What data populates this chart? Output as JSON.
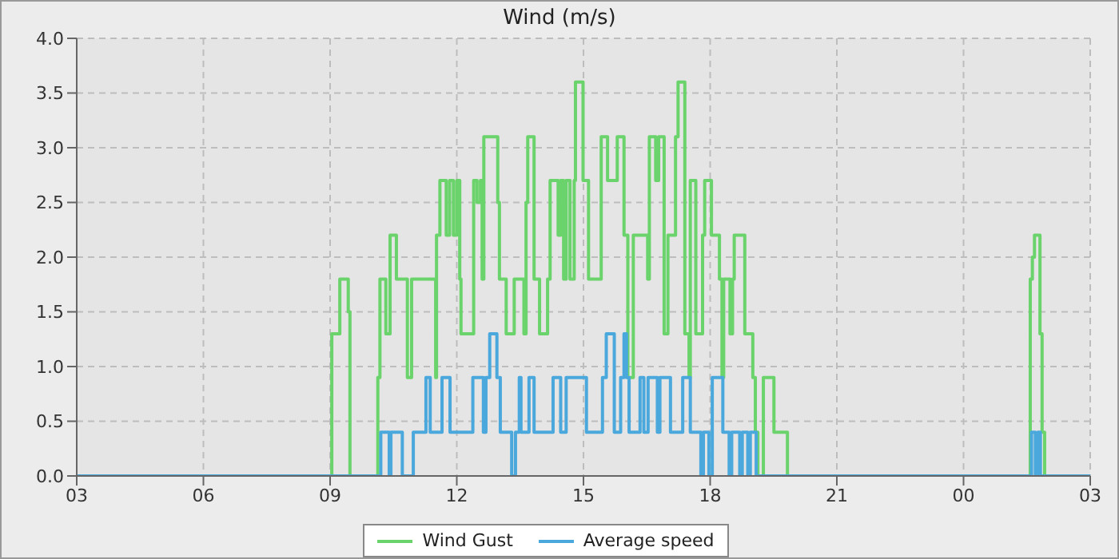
{
  "chart_data": {
    "type": "step",
    "title": "Wind (m/s)",
    "xlim": [
      3,
      27
    ],
    "xticks": [
      {
        "value": 3,
        "label": "03"
      },
      {
        "value": 6,
        "label": "06"
      },
      {
        "value": 9,
        "label": "09"
      },
      12,
      15,
      18,
      21,
      {
        "value": 24,
        "label": "00"
      },
      {
        "value": 27,
        "label": "03"
      }
    ],
    "ylim": [
      0,
      4
    ],
    "yticks": [
      {
        "value": 0,
        "label": "0.0"
      },
      {
        "value": 0.5,
        "label": "0.5"
      },
      {
        "value": 1,
        "label": "1.0"
      },
      {
        "value": 1.5,
        "label": "1.5"
      },
      {
        "value": 2,
        "label": "2.0"
      },
      {
        "value": 2.5,
        "label": "2.5"
      },
      {
        "value": 3,
        "label": "3.0"
      },
      {
        "value": 3.5,
        "label": "3.5"
      },
      {
        "value": 4,
        "label": "4.0"
      }
    ],
    "grid": true,
    "legend": "bottom",
    "line_style": "solid",
    "series": [
      {
        "name": "Wind Gust",
        "color": "#6bd36b",
        "x": [
          3,
          9.04,
          9.23,
          9.43,
          9.47,
          10.13,
          10.18,
          10.32,
          10.42,
          10.57,
          10.83,
          10.93,
          11.5,
          11.52,
          11.6,
          11.75,
          11.83,
          11.92,
          12.0,
          12.07,
          12.1,
          12.4,
          12.48,
          12.56,
          12.6,
          12.64,
          12.97,
          13.01,
          13.17,
          13.36,
          13.59,
          13.64,
          13.68,
          13.83,
          13.96,
          14.15,
          14.21,
          14.4,
          14.46,
          14.53,
          14.59,
          14.68,
          14.78,
          14.81,
          14.99,
          15.12,
          15.42,
          15.57,
          15.8,
          15.96,
          16.05,
          16.18,
          16.52,
          16.56,
          16.71,
          16.78,
          16.91,
          17.0,
          17.18,
          17.24,
          17.4,
          17.5,
          17.53,
          17.66,
          17.82,
          17.87,
          18.03,
          18.22,
          18.28,
          18.32,
          18.47,
          18.53,
          18.57,
          18.82,
          19.01,
          19.07,
          19.13,
          19.26,
          19.51,
          19.83,
          25.58,
          25.63,
          25.68,
          25.81,
          25.86,
          25.92,
          27
        ],
        "values": [
          0,
          1.3,
          1.8,
          1.5,
          0,
          0.9,
          1.8,
          1.3,
          2.2,
          1.8,
          0.9,
          1.8,
          0.9,
          2.2,
          2.7,
          2.2,
          2.7,
          2.2,
          2.7,
          1.8,
          1.3,
          2.7,
          2.5,
          2.7,
          1.8,
          3.1,
          2.5,
          1.8,
          1.3,
          1.8,
          1.3,
          2.5,
          3.1,
          1.8,
          1.3,
          1.8,
          2.7,
          2.2,
          2.7,
          1.8,
          2.7,
          1.8,
          2.7,
          3.6,
          2.7,
          1.8,
          3.1,
          2.7,
          3.1,
          2.2,
          0.9,
          2.2,
          1.8,
          3.1,
          2.7,
          3.1,
          1.3,
          2.2,
          3.1,
          3.6,
          1.3,
          0.9,
          2.7,
          1.3,
          2.2,
          2.7,
          2.2,
          1.8,
          0.9,
          1.8,
          1.3,
          1.8,
          2.2,
          1.3,
          0.9,
          0.4,
          0,
          0.9,
          0.4,
          0,
          1.8,
          2.0,
          2.2,
          1.3,
          0.4,
          0,
          0
        ]
      },
      {
        "name": "Average speed",
        "color": "#4aa8dc",
        "x": [
          3,
          10.2,
          10.4,
          10.44,
          10.71,
          10.97,
          11.27,
          11.37,
          11.65,
          11.84,
          12.38,
          12.63,
          12.69,
          12.78,
          12.95,
          13.03,
          13.3,
          13.39,
          13.48,
          13.52,
          13.71,
          13.83,
          14.28,
          14.46,
          14.59,
          15.07,
          15.45,
          15.54,
          15.73,
          15.88,
          15.96,
          16.02,
          16.08,
          16.34,
          16.43,
          16.53,
          16.75,
          16.81,
          17.06,
          17.35,
          17.53,
          17.78,
          17.84,
          17.97,
          18.05,
          18.3,
          18.45,
          18.51,
          18.7,
          18.76,
          18.89,
          18.95,
          19.09,
          25.61,
          25.7,
          25.76,
          25.82,
          27
        ],
        "values": [
          0,
          0.4,
          0,
          0.4,
          0,
          0.4,
          0.9,
          0.4,
          0.9,
          0.4,
          0.9,
          0.4,
          0.9,
          1.3,
          0.9,
          0.4,
          0,
          0.4,
          0.9,
          0.4,
          0.9,
          0.4,
          0.9,
          0.4,
          0.9,
          0.4,
          0.9,
          1.3,
          0.4,
          0.9,
          1.3,
          0.9,
          0.4,
          0.9,
          0.4,
          0.9,
          0.4,
          0.9,
          0.4,
          0.9,
          0.4,
          0,
          0.4,
          0,
          0.9,
          0.4,
          0,
          0.4,
          0,
          0.4,
          0,
          0.4,
          0,
          0.4,
          0,
          0.4,
          0,
          0
        ]
      }
    ]
  }
}
